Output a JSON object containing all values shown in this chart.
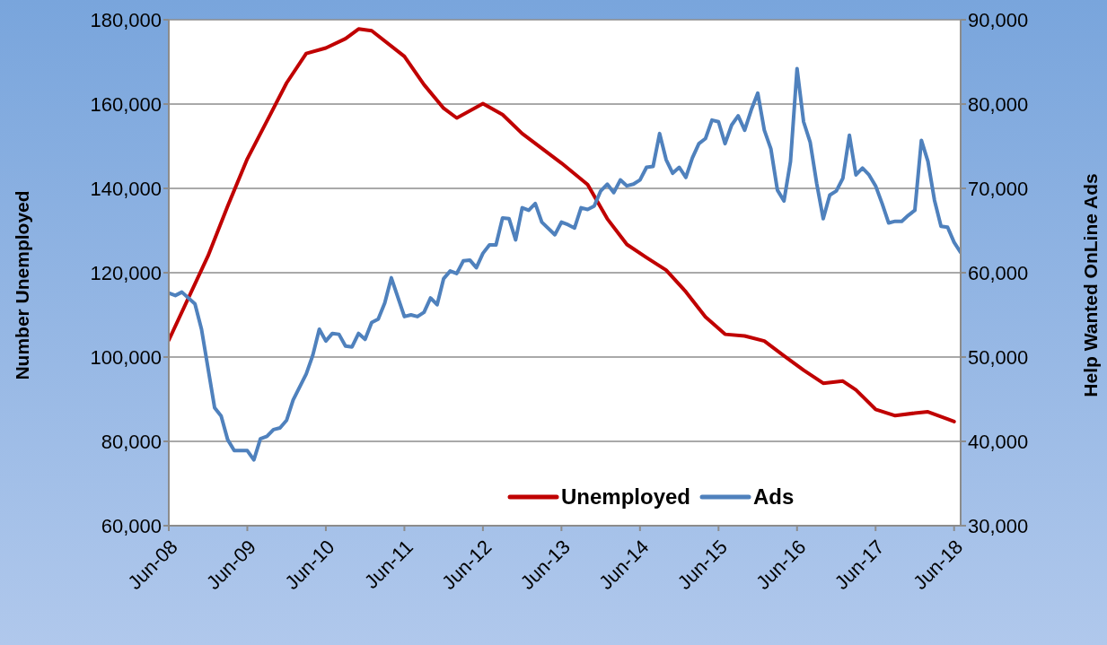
{
  "chart_data": {
    "type": "line",
    "ylabel": "Number Unemployed",
    "y2label": "Help Wanted OnLine Ads",
    "grid": "y",
    "legend": "bottom right",
    "marker": "none",
    "line_style": "solid",
    "xlim": [
      "2008-06",
      "2018-07"
    ],
    "xticks": [
      {
        "value": "2008-06",
        "label": "Jun-08"
      },
      {
        "value": "2009-06",
        "label": "Jun-09"
      },
      {
        "value": "2010-06",
        "label": "Jun-10"
      },
      {
        "value": "2011-06",
        "label": "Jun-11"
      },
      {
        "value": "2012-06",
        "label": "Jun-12"
      },
      {
        "value": "2013-06",
        "label": "Jun-13"
      },
      {
        "value": "2014-06",
        "label": "Jun-14"
      },
      {
        "value": "2015-06",
        "label": "Jun-15"
      },
      {
        "value": "2016-06",
        "label": "Jun-16"
      },
      {
        "value": "2017-06",
        "label": "Jun-17"
      },
      {
        "value": "2018-06",
        "label": "Jun-18"
      }
    ],
    "ylim": [
      60000,
      180000
    ],
    "yticks": [
      {
        "value": 60000,
        "label": "60,000"
      },
      {
        "value": 80000,
        "label": "80,000"
      },
      {
        "value": 100000,
        "label": "100,000"
      },
      {
        "value": 120000,
        "label": "120,000"
      },
      {
        "value": 140000,
        "label": "140,000"
      },
      {
        "value": 160000,
        "label": "160,000"
      },
      {
        "value": 180000,
        "label": "180,000"
      }
    ],
    "y2lim": [
      30000,
      90000
    ],
    "y2ticks": [
      {
        "value": 30000,
        "label": "30,000"
      },
      {
        "value": 40000,
        "label": "40,000"
      },
      {
        "value": 50000,
        "label": "50,000"
      },
      {
        "value": 60000,
        "label": "60,000"
      },
      {
        "value": 70000,
        "label": "70,000"
      },
      {
        "value": 80000,
        "label": "80,000"
      },
      {
        "value": 90000,
        "label": "90,000"
      }
    ],
    "series": [
      {
        "name": "Unemployed",
        "color": "#c00000",
        "x": [
          "2008-06",
          "2008-12",
          "2009-03",
          "2009-06",
          "2009-09",
          "2009-12",
          "2010-03",
          "2010-06",
          "2010-09",
          "2010-11",
          "2011-01",
          "2011-06",
          "2011-09",
          "2011-12",
          "2012-02",
          "2012-06",
          "2012-09",
          "2012-12",
          "2013-06",
          "2013-10",
          "2014-01",
          "2014-04",
          "2014-07",
          "2014-10",
          "2015-01",
          "2015-04",
          "2015-07",
          "2015-10",
          "2016-01",
          "2016-04",
          "2016-07",
          "2016-10",
          "2017-01",
          "2017-03",
          "2017-06",
          "2017-09",
          "2017-12",
          "2018-02",
          "2018-05",
          "2018-06"
        ],
        "values": [
          104000,
          124000,
          135800,
          147000,
          156000,
          165000,
          172000,
          173300,
          175500,
          177800,
          177400,
          171300,
          164600,
          159000,
          156700,
          160100,
          157500,
          153000,
          146000,
          140900,
          132800,
          126700,
          123600,
          120600,
          115500,
          109500,
          105400,
          105000,
          103800,
          100300,
          96900,
          93800,
          94300,
          92200,
          87600,
          86100,
          86700,
          87000,
          85300,
          84700
        ]
      },
      {
        "name": "Ads",
        "color": "#4f81bd",
        "axis": "y2",
        "x": [
          "2008-06",
          "2008-07",
          "2008-08",
          "2008-10",
          "2008-11",
          "2009-01",
          "2009-02",
          "2009-03",
          "2009-04",
          "2009-06",
          "2009-07",
          "2009-08",
          "2009-09",
          "2009-10",
          "2009-11",
          "2009-12",
          "2010-01",
          "2010-03",
          "2010-04",
          "2010-05",
          "2010-06",
          "2010-07",
          "2010-08",
          "2010-09",
          "2010-10",
          "2010-11",
          "2010-12",
          "2011-01",
          "2011-02",
          "2011-03",
          "2011-04",
          "2011-06",
          "2011-07",
          "2011-08",
          "2011-09",
          "2011-10",
          "2011-11",
          "2011-12",
          "2012-01",
          "2012-02",
          "2012-03",
          "2012-04",
          "2012-05",
          "2012-06",
          "2012-07",
          "2012-08",
          "2012-09",
          "2012-10",
          "2012-11",
          "2012-12",
          "2013-01",
          "2013-02",
          "2013-03",
          "2013-05",
          "2013-06",
          "2013-07",
          "2013-08",
          "2013-09",
          "2013-10",
          "2013-11",
          "2013-12",
          "2014-01",
          "2014-02",
          "2014-03",
          "2014-04",
          "2014-05",
          "2014-06",
          "2014-07",
          "2014-08",
          "2014-09",
          "2014-10",
          "2014-11",
          "2014-12",
          "2015-01",
          "2015-02",
          "2015-03",
          "2015-04",
          "2015-05",
          "2015-06",
          "2015-07",
          "2015-08",
          "2015-09",
          "2015-10",
          "2015-11",
          "2015-12",
          "2016-01",
          "2016-02",
          "2016-03",
          "2016-04",
          "2016-05",
          "2016-06",
          "2016-07",
          "2016-08",
          "2016-09",
          "2016-10",
          "2016-11",
          "2016-12",
          "2017-01",
          "2017-02",
          "2017-03",
          "2017-04",
          "2017-05",
          "2017-06",
          "2017-07",
          "2017-08",
          "2017-09",
          "2017-10",
          "2017-11",
          "2017-12",
          "2018-01",
          "2018-02",
          "2018-03",
          "2018-04",
          "2018-05",
          "2018-06",
          "2018-07"
        ],
        "values": [
          57600,
          57300,
          57700,
          56300,
          53300,
          44000,
          43000,
          40200,
          38900,
          38900,
          37800,
          40300,
          40600,
          41400,
          41600,
          42500,
          44900,
          48000,
          50200,
          53300,
          51900,
          52800,
          52700,
          51300,
          51200,
          52800,
          52100,
          54100,
          54500,
          56400,
          59400,
          54800,
          55000,
          54800,
          55300,
          57000,
          56200,
          59300,
          60200,
          59900,
          61400,
          61500,
          60600,
          62300,
          63300,
          63300,
          66500,
          66400,
          63900,
          67700,
          67400,
          68200,
          66000,
          64500,
          66000,
          65700,
          65300,
          67700,
          67500,
          67900,
          69700,
          70500,
          69500,
          71000,
          70300,
          70500,
          71000,
          72500,
          72600,
          76500,
          73400,
          71800,
          72500,
          71300,
          73600,
          75300,
          75900,
          78100,
          77900,
          75300,
          77500,
          78600,
          76900,
          79300,
          81300,
          76900,
          74700,
          69800,
          68500,
          73200,
          84200,
          77900,
          75500,
          70600,
          66400,
          69200,
          69700,
          71200,
          76300,
          71600,
          72400,
          71600,
          70300,
          68200,
          65900,
          66100,
          66100,
          66800,
          67400,
          75700,
          73200,
          68600,
          65500,
          65400,
          63600,
          62400
        ]
      }
    ]
  }
}
